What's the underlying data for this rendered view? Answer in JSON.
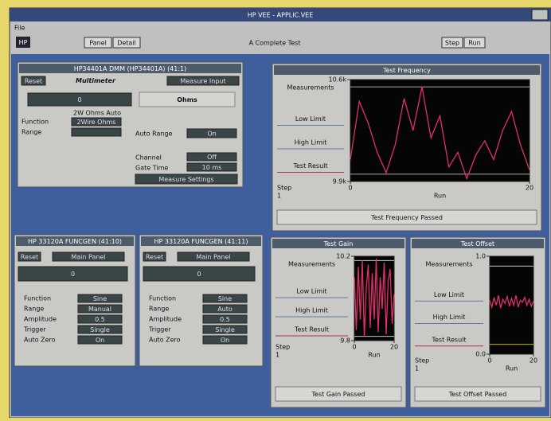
{
  "window": {
    "title": "HP VEE - APPLIC.VEE",
    "menu": [
      "File"
    ]
  },
  "toolbar": {
    "logo": "HP",
    "buttons": [
      "Panel",
      "Detail"
    ],
    "title": "A Complete Test",
    "run": [
      "Step",
      "Run"
    ]
  },
  "dmm": {
    "title": "HP34401A DMM (HP34401A) (41:1)",
    "reset": "Reset",
    "name": "Multimeter",
    "hold": "Measure Input",
    "reading": "0",
    "units": "Ohms",
    "mode": "2W Ohms Auto",
    "function": [
      "Function",
      "2Wire Ohms"
    ],
    "range": "Range",
    "auto_range": [
      "Auto Range",
      "On"
    ],
    "channel": [
      "Channel",
      "Off"
    ],
    "gate": [
      "Gate Time",
      "10 ms"
    ],
    "button": "Measure Settings"
  },
  "funcgens": [
    {
      "title": "HP 33120A FUNCGEN (41:10)",
      "reset": "Reset",
      "main": "Main Panel",
      "reading": "0",
      "rows": [
        [
          "Function",
          "Sine"
        ],
        [
          "Range",
          "Manual"
        ],
        [
          "Amplitude",
          "0.5"
        ],
        [
          "Trigger",
          "Single"
        ],
        [
          "Auto Zero",
          "On"
        ]
      ]
    },
    {
      "title": "HP 33120A FUNCGEN (41:11)",
      "reset": "Reset",
      "main": "Main Panel",
      "reading": "0",
      "rows": [
        [
          "Function",
          "Sine"
        ],
        [
          "Range",
          "Auto"
        ],
        [
          "Amplitude",
          "0.5"
        ],
        [
          "Trigger",
          "Single"
        ],
        [
          "Auto Zero",
          "On"
        ]
      ]
    }
  ],
  "plots": [
    {
      "title": "Test Frequency",
      "labels": [
        "Measurements",
        "Low Limit",
        "High Limit",
        "Test Result"
      ],
      "ylim": [
        9900,
        10600
      ],
      "yticks": [
        {
          "value": 10600,
          "label": "10.6k"
        },
        {
          "value": 9900,
          "label": "9.9k"
        }
      ],
      "xlim": [
        0,
        20
      ],
      "xticks": [
        0,
        20
      ],
      "x_label": "Run",
      "step": [
        "Step",
        "1"
      ],
      "limits": [
        9950,
        10550
      ],
      "values": [
        10050,
        10450,
        10300,
        10100,
        9960,
        10150,
        10470,
        10250,
        10550,
        10200,
        10350,
        10000,
        10100,
        9920,
        10080,
        10180,
        10050,
        10250,
        10380,
        10150,
        9980
      ],
      "status": "Test Frequency Passed"
    },
    {
      "title": "Test Gain",
      "labels": [
        "Measurements",
        "Low Limit",
        "High Limit",
        "Test Result"
      ],
      "ylim": [
        9.8,
        10.2
      ],
      "yticks": [
        {
          "value": 10.2,
          "label": "10.2"
        },
        {
          "value": 9.8,
          "label": "9.8"
        }
      ],
      "xlim": [
        0,
        20
      ],
      "xticks": [
        0,
        20
      ],
      "x_label": "Run",
      "step": [
        "Step",
        "1"
      ],
      "limits": [
        9.82,
        10.18
      ],
      "values": [
        10.1,
        9.85,
        10.15,
        9.9,
        10.18,
        9.82,
        10.05,
        10.16,
        9.86,
        10.12,
        9.9,
        10.19,
        9.84,
        10.1,
        9.95,
        10.17,
        9.83,
        10.08,
        10.14,
        9.88,
        10.02
      ],
      "status": "Test Gain Passed"
    },
    {
      "title": "Test Offset",
      "labels": [
        "Measurements",
        "Low Limit",
        "High Limit",
        "Test Result"
      ],
      "ylim": [
        0,
        1
      ],
      "yticks": [
        {
          "value": 1,
          "label": "1.0"
        },
        {
          "value": 0,
          "label": "0.0"
        }
      ],
      "xlim": [
        0,
        20
      ],
      "xticks": [
        0,
        20
      ],
      "x_label": "Run",
      "step": [
        "Step",
        "1"
      ],
      "limits": [
        0.1,
        0.9
      ],
      "values": [
        0.55,
        0.48,
        0.58,
        0.5,
        0.6,
        0.47,
        0.56,
        0.52,
        0.59,
        0.49,
        0.57,
        0.5,
        0.6,
        0.48,
        0.55,
        0.53,
        0.58,
        0.5,
        0.56,
        0.49,
        0.54
      ],
      "status": "Test Offset Passed"
    }
  ]
}
